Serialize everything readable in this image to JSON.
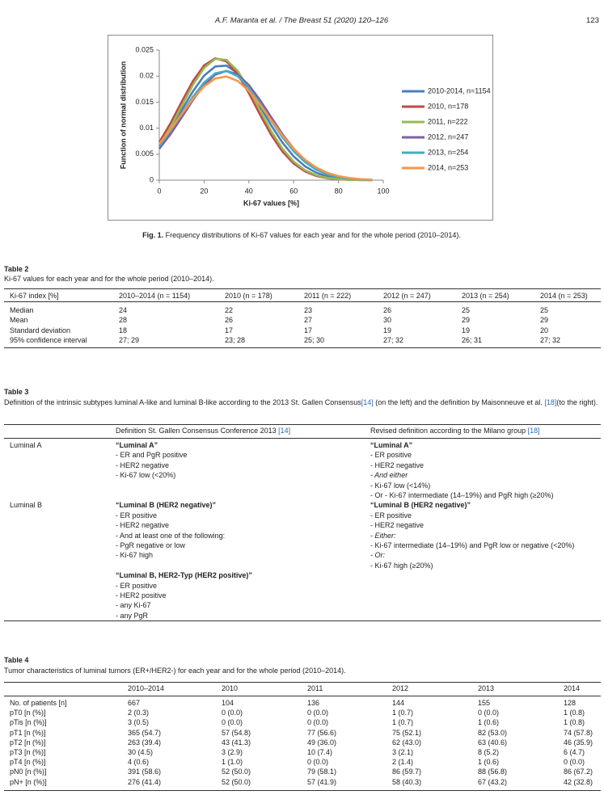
{
  "header": {
    "running_title": "A.F. Maranta et al. / The Breast 51 (2020) 120–126",
    "page_number": "123"
  },
  "figure": {
    "chart_data": {
      "type": "line",
      "xlabel": "Ki-67 values [%]",
      "ylabel": "Function of normal distribution",
      "x": [
        0,
        5,
        10,
        15,
        20,
        25,
        30,
        35,
        40,
        45,
        50,
        55,
        60,
        65,
        70,
        75,
        80,
        85,
        90,
        95
      ],
      "xlim": [
        0,
        100
      ],
      "xticks": [
        0,
        20,
        40,
        60,
        80,
        100
      ],
      "ylim": [
        0,
        0.025
      ],
      "yticks": [
        0,
        0.005,
        0.01,
        0.015,
        0.02,
        0.025
      ],
      "legend": "right",
      "series": [
        {
          "name": "2010-2014, n=1154",
          "color": "#4a7ebb",
          "values": [
            0.00661,
            0.0098,
            0.01344,
            0.01707,
            0.02008,
            0.02185,
            0.02202,
            0.02055,
            0.01774,
            0.01419,
            0.0105,
            0.0072,
            0.00457,
            0.00268,
            0.00146,
            0.00073,
            0.00034,
            0.00015,
            6e-05,
            2e-05
          ]
        },
        {
          "name": "2010, n=178",
          "color": "#be4b48",
          "values": [
            0.00729,
            0.01094,
            0.01507,
            0.01904,
            0.02205,
            0.02343,
            0.02283,
            0.0204,
            0.01672,
            0.01257,
            0.00867,
            0.00548,
            0.00318,
            0.00169,
            0.00082,
            0.00037,
            0.00015,
            6e-05,
            2e-05,
            1e-05
          ]
        },
        {
          "name": "2011, n=222",
          "color": "#98b954",
          "values": [
            0.00665,
            0.01016,
            0.01424,
            0.01829,
            0.02156,
            0.02331,
            0.02311,
            0.02101,
            0.01752,
            0.0134,
            0.0094,
            0.00605,
            0.00357,
            0.00193,
            0.00096,
            0.00044,
            0.00018,
            7e-05,
            2e-05,
            1e-05
          ]
        },
        {
          "name": "2012, n=247",
          "color": "#7d60a0",
          "values": [
            0.00604,
            0.00883,
            0.01207,
            0.01538,
            0.01828,
            0.02029,
            0.021,
            0.02029,
            0.01828,
            0.01538,
            0.01207,
            0.00883,
            0.00604,
            0.00385,
            0.00229,
            0.00127,
            0.00066,
            0.00032,
            0.00014,
            6e-05
          ]
        },
        {
          "name": "2013, n=254",
          "color": "#46aac5",
          "values": [
            0.00655,
            0.00946,
            0.01274,
            0.01601,
            0.01877,
            0.02054,
            0.02097,
            0.01998,
            0.01776,
            0.01473,
            0.0114,
            0.00823,
            0.00555,
            0.00349,
            0.00205,
            0.00112,
            0.00057,
            0.00027,
            0.00012,
            5e-05
          ]
        },
        {
          "name": "2014, n=253",
          "color": "#f79646",
          "values": [
            0.00697,
            0.00971,
            0.0127,
            0.01561,
            0.01803,
            0.01955,
            0.01992,
            0.01907,
            0.01715,
            0.01449,
            0.01149,
            0.00857,
            0.006,
            0.00395,
            0.00244,
            0.00142,
            0.00077,
            0.0004,
            0.00019,
            9e-05
          ]
        }
      ]
    },
    "caption": {
      "label": "Fig. 1.",
      "text": "Frequency distributions of Ki-67 values for each year and for the whole period (2010–2014)."
    }
  },
  "table2": {
    "label": "Table 2",
    "caption": "Ki-67 values for each year and for the whole period (2010–2014).",
    "columns": [
      "Ki-67 index [%]",
      "2010–2014 (n = 1154)",
      "2010 (n = 178)",
      "2011 (n = 222)",
      "2012 (n = 247)",
      "2013 (n = 254)",
      "2014 (n = 253)"
    ],
    "rows": [
      [
        "Median",
        24,
        22,
        23,
        26,
        25,
        25
      ],
      [
        "Mean",
        28,
        26,
        27,
        30,
        29,
        29
      ],
      [
        "Standard deviation",
        18,
        17,
        17,
        19,
        19,
        20
      ],
      [
        "95% confidence interval",
        "27; 29",
        "23; 28",
        "25; 30",
        "27; 32",
        "26; 31",
        "27; 32"
      ]
    ]
  },
  "table3": {
    "label": "Table 3",
    "caption": [
      "Definition of the intrinsic subtypes luminal A-like and luminal B-like according to the 2013 St. Gallen Consensus",
      "[14]",
      " (on the left) and the definition by Maisonneuve et al. ",
      "[18]",
      "(to the right)."
    ],
    "columns": [
      [
        "Definition St. Gallen Consensus Conference 2013 ",
        "[14]"
      ],
      [
        "Revised definition according to the Milano group ",
        "[18]"
      ]
    ],
    "rows": [
      {
        "label": "Luminal A",
        "left": [
          {
            "title": "“Luminal A”",
            "items": [
              "- ER and PgR positive",
              "- HER2 negative",
              "- Ki-67 low (<20%)"
            ]
          }
        ],
        "right": [
          {
            "title": "“Luminal A”",
            "items": [
              "- ER positive",
              "- HER2 negative",
              {
                "text": "- And either",
                "italic": true
              },
              "- Ki-67 low (<14%)",
              "- Or - Ki-67 intermediate (14–19%) and PgR high (≥20%)"
            ]
          }
        ]
      },
      {
        "label": "Luminal B",
        "left": [
          {
            "title": "“Luminal B (HER2 negative)”",
            "items": [
              "- ER positive",
              "- HER2 negative",
              "- And at least one of the following:",
              "- PgR negative or low",
              "- Ki-67 high"
            ]
          },
          {
            "title": "“Luminal B, HER2-Typ (HER2 positive)”",
            "items": [
              "- ER positive",
              "- HER2 positive",
              "- any Ki-67",
              "- any PgR"
            ]
          }
        ],
        "right": [
          {
            "title": "“Luminal B (HER2 negative)”",
            "items": [
              "- ER positive",
              "- HER2 negative",
              {
                "text": "- Either:",
                "italic": true
              },
              "- Ki-67 intermediate (14–19%) and PgR low or negative (<20%)",
              {
                "text": "- Or:",
                "italic": true
              },
              "- Ki-67 high (≥20%)"
            ]
          }
        ]
      }
    ]
  },
  "table4": {
    "label": "Table 4",
    "caption": "Tumor characteristics of luminal tumors (ER+/HER2-) for each year and for the whole period (2010–2014).",
    "columns": [
      "2010–2014",
      "2010",
      "2011",
      "2012",
      "2013",
      "2014"
    ],
    "rows": [
      [
        "No. of patients [n]",
        667,
        104,
        136,
        144,
        155,
        128
      ],
      [
        "pT0 [n (%)]",
        "2 (0.3)",
        "0 (0.0)",
        "0 (0.0)",
        "1 (0.7)",
        "0 (0.0)",
        "1 (0.8)"
      ],
      [
        "pTis [n (%)]",
        "3 (0.5)",
        "0 (0.0)",
        "0 (0.0)",
        "1 (0.7)",
        "1 (0.6)",
        "1 (0.8)"
      ],
      [
        "pT1 [n (%)]",
        "365 (54.7)",
        "57 (54.8)",
        "77 (56.6)",
        "75 (52.1)",
        "82 (53.0)",
        "74 (57.8)"
      ],
      [
        "pT2 [n (%)]",
        "263 (39.4)",
        "43 (41.3)",
        "49 (36.0)",
        "62 (43.0)",
        "63 (40.6)",
        "46 (35.9)"
      ],
      [
        "pT3 [n (%)]",
        "30 (4.5)",
        "3 (2.9)",
        "10 (7.4)",
        "3 (2.1)",
        "8 (5.2)",
        "6 (4.7)"
      ],
      [
        "pT4 [n (%)]",
        "4 (0.6)",
        "1 (1.0)",
        "0 (0.0)",
        "2 (1.4)",
        "1 (0.6)",
        "0 (0.0)"
      ],
      [
        "pN0 [n (%)]",
        "391 (58.6)",
        "52 (50.0)",
        "79 (58.1)",
        "86 (59.7)",
        "88 (56.8)",
        "86 (67.2)"
      ],
      [
        "pN+ [n (%)]",
        "276 (41.4)",
        "52 (50.0)",
        "57 (41.9)",
        "58 (40.3)",
        "67 (43.2)",
        "42 (32.8)"
      ]
    ]
  }
}
